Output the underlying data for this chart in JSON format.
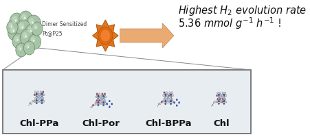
{
  "bg_color": "#ffffff",
  "bottom_box_bg": "#e8edf2",
  "bottom_box_border": "#666666",
  "dimer_label": "Dimer Sensitized\nPt@P25",
  "molecule_labels": [
    "Chl-PPa",
    "Chl-Por",
    "Chl-BPPa",
    "Chl"
  ],
  "sun_color": "#e07820",
  "sun_ray_inner": "#e07820",
  "sun_center": "#d06010",
  "arrow_color": "#e8a060",
  "sphere_color": "#a8c4a8",
  "sphere_edge": "#608860",
  "sphere_highlight": "#c8dcc8",
  "label_fontsize": 9.5,
  "dimer_fontsize": 5.5,
  "title_fontsize": 10.5,
  "fig_width": 4.52,
  "fig_height": 2.0,
  "dpi": 100
}
